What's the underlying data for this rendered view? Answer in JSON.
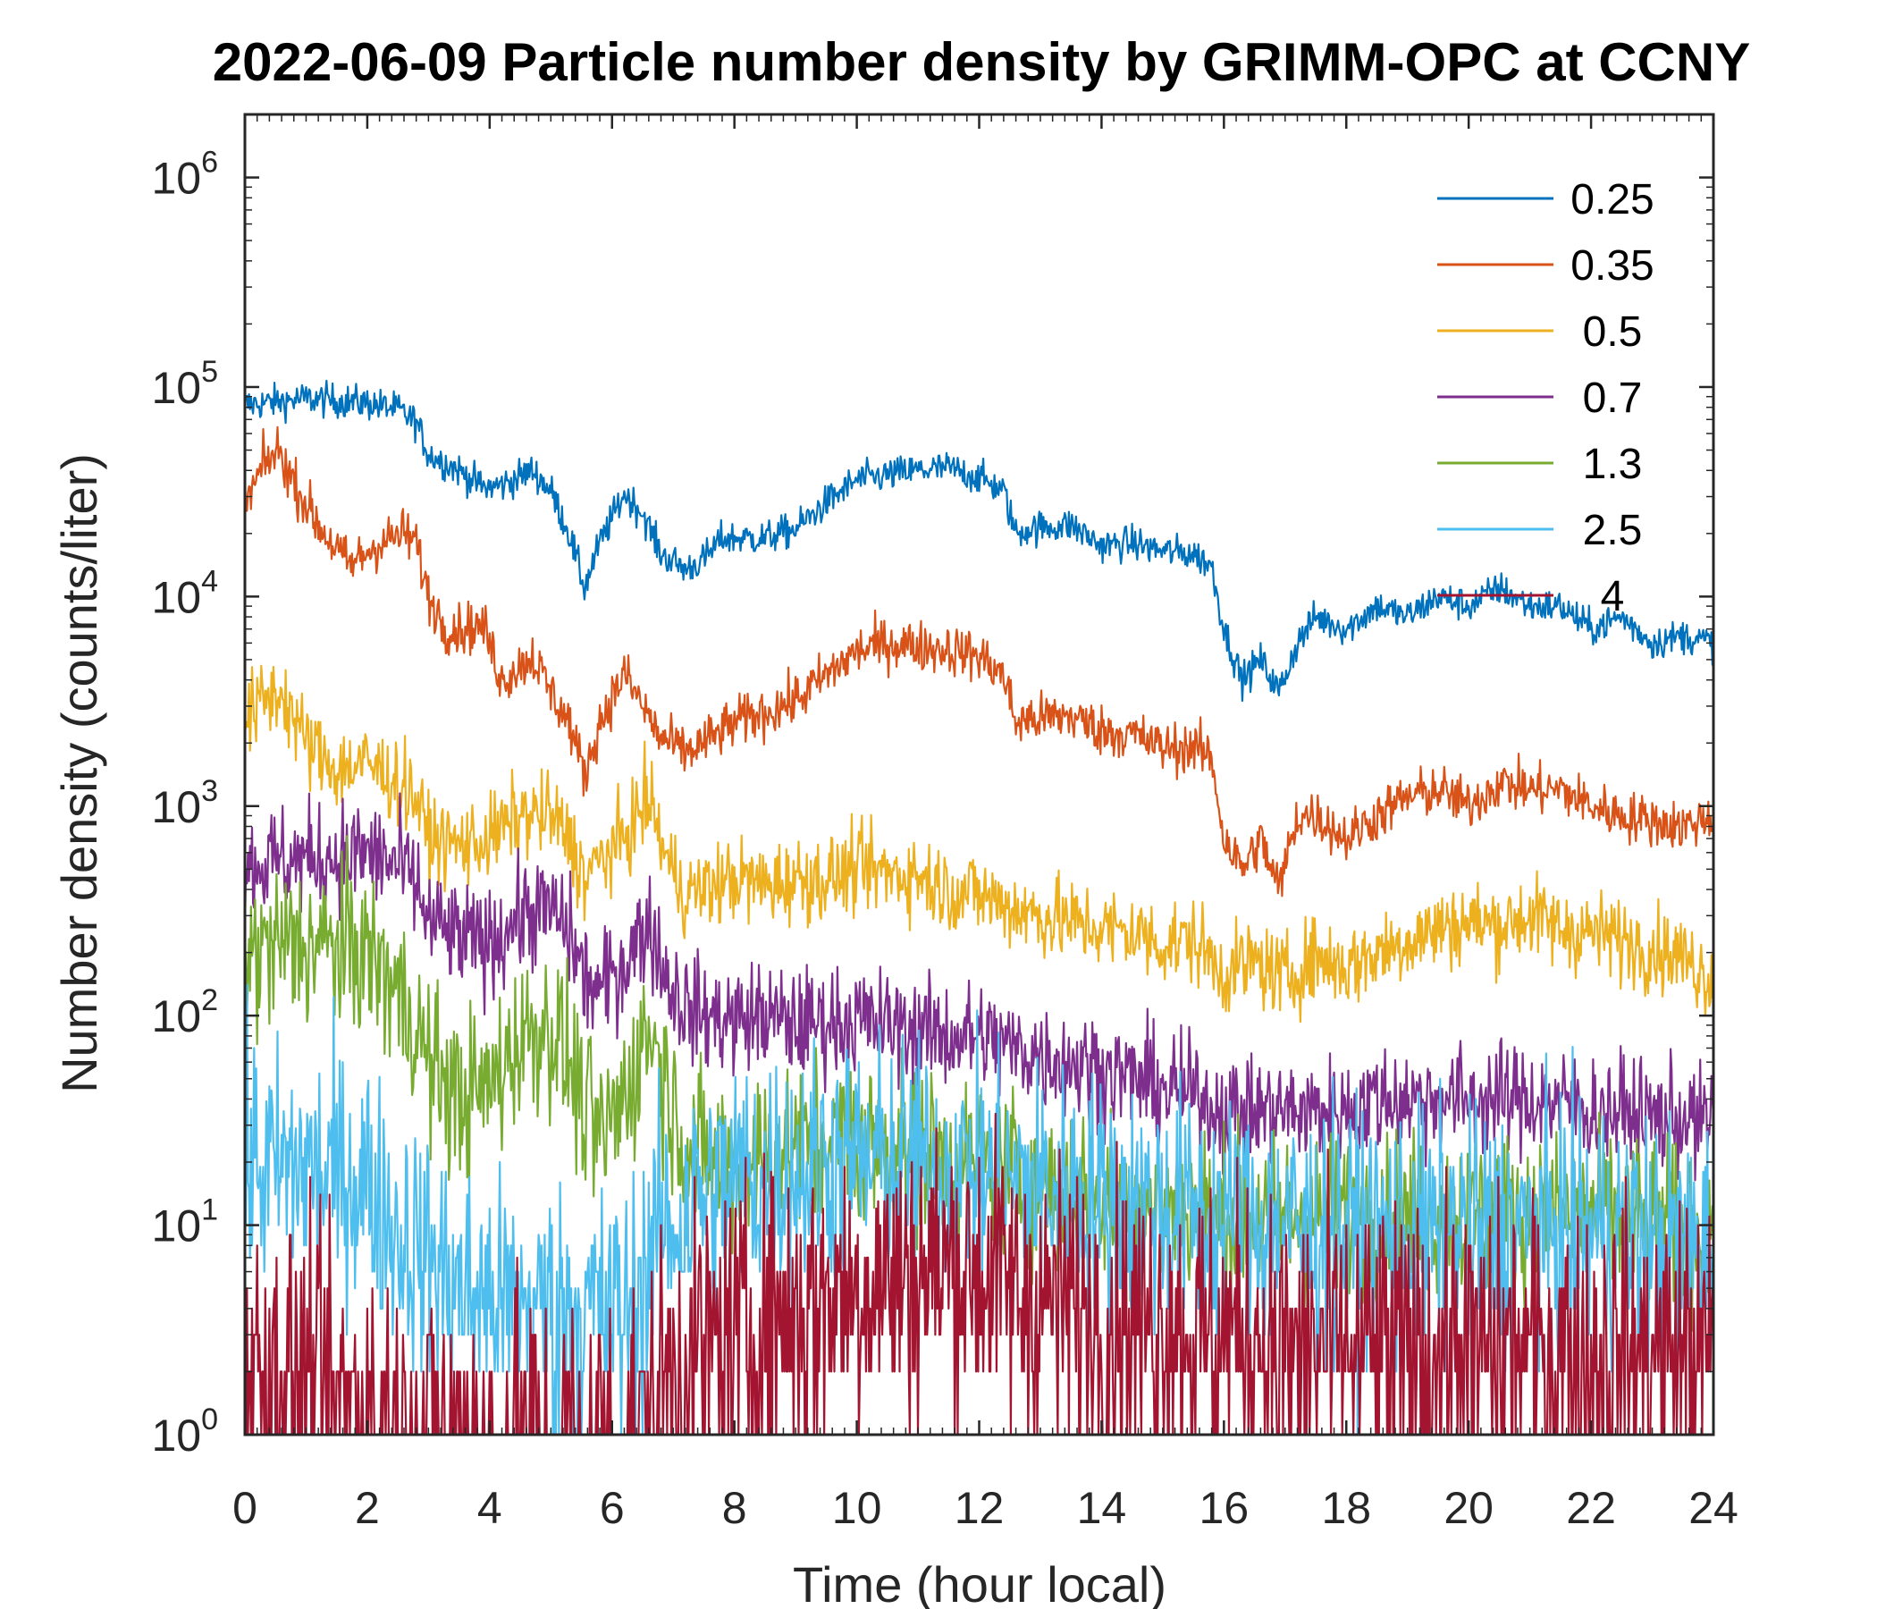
{
  "chart_data": {
    "type": "line",
    "title": "2022-06-09 Particle number density by GRIMM-OPC at CCNY",
    "xlabel": "Time (hour local)",
    "ylabel": "Number density (counts/liter)",
    "xlim": [
      0,
      24
    ],
    "ylim": [
      1,
      2000000
    ],
    "yscale": "log",
    "x_ticks": [
      "0",
      "2",
      "4",
      "6",
      "8",
      "10",
      "12",
      "14",
      "16",
      "18",
      "20",
      "22",
      "24"
    ],
    "y_ticks": [
      {
        "base": "10",
        "exp": "0"
      },
      {
        "base": "10",
        "exp": "1"
      },
      {
        "base": "10",
        "exp": "2"
      },
      {
        "base": "10",
        "exp": "3"
      },
      {
        "base": "10",
        "exp": "4"
      },
      {
        "base": "10",
        "exp": "5"
      },
      {
        "base": "10",
        "exp": "6"
      }
    ],
    "legend_position": "top-right",
    "grid": false,
    "series": [
      {
        "name": "0.25",
        "color": "#0072BD",
        "x": [
          0,
          0.5,
          1,
          1.5,
          2,
          2.5,
          2.8,
          3,
          3.5,
          3.9,
          4.2,
          4.7,
          5,
          5.3,
          5.55,
          5.8,
          6.2,
          6.5,
          6.8,
          7.2,
          7.5,
          7.8,
          8.5,
          9,
          9.5,
          10,
          10.5,
          11,
          11.5,
          12,
          12.4,
          12.6,
          12.8,
          13.5,
          14,
          14.5,
          15,
          15.5,
          15.8,
          16,
          16.3,
          16.6,
          16.9,
          17.2,
          17.5,
          18,
          18.5,
          19,
          19.5,
          20,
          20.5,
          21,
          21.5,
          22,
          22.5,
          23,
          23.5,
          24
        ],
        "values": [
          82000,
          85000,
          88000,
          86000,
          84000,
          78000,
          68000,
          48000,
          40000,
          33000,
          34000,
          40000,
          32000,
          20000,
          11000,
          18000,
          31000,
          25000,
          16000,
          13500,
          15000,
          19000,
          19000,
          21000,
          28000,
          36000,
          38000,
          40000,
          41000,
          37000,
          32000,
          20000,
          21000,
          22000,
          17500,
          18000,
          16500,
          16000,
          14000,
          7000,
          4000,
          5000,
          3500,
          6000,
          8000,
          7000,
          9000,
          8000,
          10000,
          9000,
          11000,
          9000,
          9000,
          7000,
          8000,
          6000,
          6500,
          6000
        ]
      },
      {
        "name": "0.35",
        "color": "#D95319",
        "x": [
          0,
          0.3,
          0.55,
          0.8,
          1.2,
          1.7,
          2.2,
          2.6,
          2.8,
          3,
          3.3,
          3.9,
          4.2,
          4.7,
          5,
          5.3,
          5.55,
          5.8,
          6.2,
          6.5,
          6.8,
          7.2,
          7.5,
          8,
          8.5,
          9,
          9.5,
          10,
          10.5,
          11,
          11.5,
          12,
          12.4,
          12.6,
          12.8,
          13.5,
          14,
          14.5,
          15,
          15.5,
          15.8,
          16,
          16.3,
          16.6,
          16.9,
          17.2,
          17.5,
          18,
          18.5,
          19,
          19.5,
          20,
          20.5,
          21,
          21.5,
          22,
          22.5,
          23,
          23.5,
          24
        ],
        "values": [
          27000,
          42000,
          50000,
          35000,
          22000,
          14000,
          18000,
          20000,
          18000,
          10000,
          7000,
          7200,
          4000,
          5200,
          3500,
          2500,
          1400,
          2500,
          4300,
          3000,
          2100,
          1800,
          2000,
          2500,
          2800,
          3200,
          4200,
          5500,
          6000,
          5800,
          5600,
          5200,
          4200,
          2500,
          2600,
          2700,
          2300,
          2200,
          1900,
          1900,
          1700,
          700,
          500,
          700,
          400,
          900,
          900,
          700,
          900,
          1100,
          1200,
          1000,
          1300,
          1200,
          1200,
          1000,
          900,
          850,
          800,
          900
        ]
      },
      {
        "name": "0.5",
        "color": "#EDB120",
        "x": [
          0,
          0.3,
          0.6,
          1,
          1.5,
          2,
          2.5,
          2.8,
          3,
          3.5,
          4,
          4.5,
          5,
          5.3,
          5.55,
          5.8,
          6.2,
          6.6,
          6.9,
          7.2,
          7.5,
          8,
          8.5,
          9,
          9.5,
          10,
          10.5,
          11,
          11.5,
          12,
          12.5,
          13,
          13.5,
          14,
          14.5,
          15,
          15.5,
          16,
          16.5,
          17,
          17.5,
          18,
          18.5,
          19,
          19.5,
          20,
          20.5,
          21,
          21.5,
          22,
          22.5,
          23,
          23.5,
          24
        ],
        "values": [
          2500,
          3200,
          3500,
          2000,
          1500,
          1600,
          1300,
          1100,
          700,
          650,
          700,
          900,
          900,
          700,
          450,
          550,
          700,
          1100,
          550,
          380,
          400,
          450,
          420,
          450,
          450,
          500,
          480,
          470,
          400,
          380,
          330,
          300,
          280,
          260,
          250,
          220,
          230,
          160,
          180,
          150,
          190,
          170,
          200,
          230,
          260,
          280,
          270,
          300,
          260,
          250,
          230,
          210,
          190,
          150
        ]
      },
      {
        "name": "0.7",
        "color": "#7E2F8E",
        "x": [
          0,
          0.5,
          1,
          1.5,
          2,
          2.5,
          2.8,
          3,
          3.5,
          4,
          4.5,
          5,
          5.3,
          5.55,
          5.8,
          6.2,
          6.6,
          6.9,
          7.2,
          7.5,
          8,
          8.5,
          9,
          9.5,
          10,
          10.5,
          11,
          11.5,
          12,
          12.5,
          13,
          13.5,
          14,
          14.5,
          15,
          15.5,
          16,
          16.5,
          17,
          17.5,
          18,
          18.5,
          19,
          19.5,
          20,
          20.5,
          21,
          21.5,
          22,
          22.5,
          23,
          23.5,
          24
        ],
        "values": [
          520,
          550,
          560,
          580,
          600,
          520,
          420,
          280,
          230,
          220,
          300,
          320,
          250,
          150,
          130,
          180,
          280,
          150,
          110,
          100,
          95,
          100,
          90,
          95,
          95,
          90,
          85,
          80,
          80,
          70,
          65,
          60,
          55,
          50,
          45,
          42,
          35,
          35,
          35,
          35,
          35,
          40,
          40,
          40,
          40,
          40,
          40,
          38,
          35,
          35,
          33,
          32,
          30
        ]
      },
      {
        "name": "1.3",
        "color": "#77AC30",
        "x": [
          0,
          0.5,
          1,
          1.5,
          2,
          2.5,
          2.8,
          3,
          3.5,
          4,
          4.5,
          5,
          5.3,
          5.55,
          5.8,
          6.2,
          6.6,
          6.9,
          7.2,
          7.5,
          8,
          8.5,
          9,
          9.5,
          10,
          10.5,
          11,
          11.5,
          12,
          12.5,
          13,
          13.5,
          14,
          14.5,
          15,
          15.5,
          16,
          16.5,
          17,
          17.5,
          18,
          18.5,
          19,
          19.5,
          20,
          20.5,
          21,
          21.5,
          22,
          22.5,
          23,
          23.5,
          24
        ],
        "values": [
          190,
          210,
          220,
          210,
          200,
          130,
          90,
          60,
          40,
          45,
          80,
          90,
          60,
          35,
          25,
          40,
          90,
          45,
          25,
          20,
          20,
          22,
          24,
          25,
          25,
          24,
          22,
          21,
          20,
          18,
          16,
          15,
          14,
          13,
          12,
          12,
          11,
          11,
          11,
          11,
          11,
          11,
          11,
          11,
          11,
          11,
          11,
          11,
          11,
          11,
          10,
          10,
          10
        ]
      },
      {
        "name": "2.5",
        "color": "#4DBEEE",
        "x": [
          0,
          0.5,
          1,
          1.5,
          2,
          2.5,
          3,
          3.5,
          4,
          4.5,
          5,
          5.5,
          6,
          6.3,
          6.7,
          7,
          7.5,
          8,
          8.5,
          9,
          9.5,
          10,
          10.5,
          11,
          11.5,
          12,
          12.5,
          13,
          13.5,
          14,
          14.5,
          15,
          15.5,
          16,
          16.5,
          17,
          17.5,
          18,
          18.5,
          19,
          19.5,
          20,
          20.5,
          21,
          21.5,
          22,
          22.5,
          23,
          23.5,
          24
        ],
        "values": [
          20,
          18,
          19,
          17,
          16,
          9,
          7,
          5,
          4.5,
          4,
          4,
          4,
          4,
          4,
          8,
          10,
          14,
          16,
          17,
          18,
          20,
          19,
          20,
          19,
          18,
          17,
          16,
          15,
          14,
          13,
          12,
          12,
          11,
          10,
          10,
          10,
          9,
          9,
          9,
          9,
          9,
          9,
          9,
          9,
          9,
          9,
          9,
          8,
          8,
          8
        ]
      },
      {
        "name": "4",
        "color": "#A2142F",
        "x": [
          0,
          0.5,
          1,
          1.5,
          2,
          2.5,
          3,
          3.5,
          4,
          4.5,
          5,
          5.5,
          6,
          6.5,
          6.9,
          7.5,
          8,
          8.5,
          9,
          9.5,
          10,
          10.5,
          11,
          11.5,
          12,
          12.5,
          13,
          13.5,
          14,
          14.5,
          15,
          15.5,
          16,
          16.5,
          17,
          17.5,
          18,
          18.5,
          19,
          19.5,
          20,
          20.5,
          21,
          21.5,
          22,
          22.5,
          23,
          23.5,
          24
        ],
        "values": [
          2,
          2,
          2,
          1.5,
          1.5,
          1,
          1,
          1,
          1,
          1,
          1,
          1,
          1,
          1,
          2,
          2.5,
          3,
          3.5,
          4,
          4.5,
          5,
          5.5,
          6,
          6.5,
          6,
          5,
          4.5,
          4,
          3.5,
          3.5,
          3.5,
          3,
          3,
          3,
          2.5,
          2.5,
          2.5,
          2.5,
          2.5,
          2.5,
          2.5,
          2.5,
          2.5,
          2.5,
          2.5,
          2.5,
          2.5,
          2.5,
          2.5
        ]
      }
    ]
  }
}
